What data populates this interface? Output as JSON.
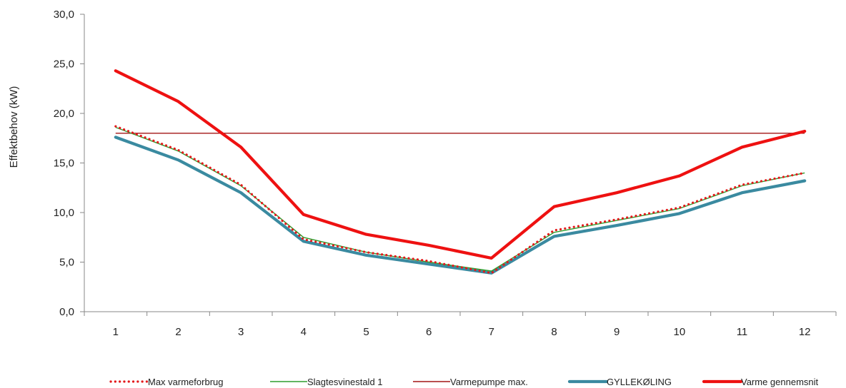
{
  "chart_data": {
    "type": "line",
    "title": "",
    "xlabel": "",
    "ylabel": "Effektbehov (kW)",
    "categories": [
      "1",
      "2",
      "3",
      "4",
      "5",
      "6",
      "7",
      "8",
      "9",
      "10",
      "11",
      "12"
    ],
    "y_ticks": [
      "0,0",
      "5,0",
      "10,0",
      "15,0",
      "20,0",
      "25,0",
      "30,0"
    ],
    "ylim": [
      0,
      30
    ],
    "grid": false,
    "legend_position": "bottom",
    "series": [
      {
        "name": "Max varmeforbrug",
        "color": "#e31a1c",
        "style": "dotted",
        "values": [
          18.7,
          16.3,
          12.8,
          7.3,
          6.0,
          5.1,
          3.9,
          8.2,
          9.3,
          10.5,
          12.8,
          14.0
        ]
      },
      {
        "name": "Slagtesvinestald 1",
        "color": "#2e9e2e",
        "style": "thin",
        "values": [
          18.6,
          16.2,
          12.7,
          7.5,
          6.0,
          5.0,
          4.1,
          8.0,
          9.2,
          10.4,
          12.7,
          14.0
        ]
      },
      {
        "name": "Varmepumpe max.",
        "color": "#a31515",
        "style": "thin",
        "values": [
          18.0,
          18.0,
          18.0,
          18.0,
          18.0,
          18.0,
          18.0,
          18.0,
          18.0,
          18.0,
          18.0,
          18.0
        ]
      },
      {
        "name": "GYLLEKØLING",
        "color": "#3a8aa0",
        "style": "thick",
        "values": [
          17.6,
          15.3,
          12.0,
          7.1,
          5.7,
          4.8,
          3.9,
          7.6,
          8.7,
          9.9,
          12.0,
          13.2
        ]
      },
      {
        "name": "Varme gennemsnit",
        "color": "#ee1111",
        "style": "thick",
        "values": [
          24.3,
          21.2,
          16.6,
          9.8,
          7.8,
          6.7,
          5.4,
          10.6,
          12.0,
          13.7,
          16.6,
          18.2
        ]
      }
    ]
  }
}
